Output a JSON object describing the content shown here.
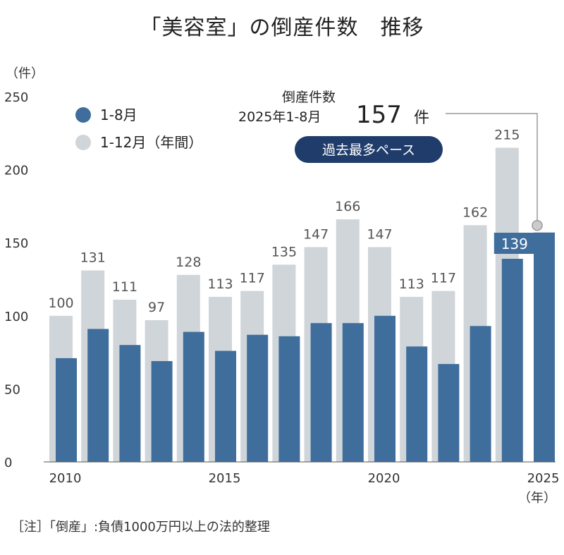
{
  "title": "「美容室」の倒産件数　推移",
  "footnote": "［注］「倒産」:負債1000万円以上の法的整理",
  "colors": {
    "aug": "#3f6e9c",
    "full": "#d0d5da",
    "badge": "#1f3c6b",
    "axis": "#555555",
    "leader": "#999999"
  },
  "annotation": {
    "line1": "倒産件数",
    "line2": "2025年1-8月",
    "value": "157",
    "unit": "件",
    "badge": "過去最多ペース"
  },
  "chart_data": {
    "type": "bar",
    "title": "「美容室」の倒産件数　推移",
    "ylabel": "（件）",
    "xlabel": "（年）",
    "ylim": [
      0,
      250
    ],
    "yticks": [
      0,
      50,
      100,
      150,
      200,
      250
    ],
    "xticks": [
      "2010",
      "2015",
      "2020",
      "2025"
    ],
    "legend": {
      "position": "top-left"
    },
    "categories": [
      "2010",
      "2011",
      "2012",
      "2013",
      "2014",
      "2015",
      "2016",
      "2017",
      "2018",
      "2019",
      "2020",
      "2021",
      "2022",
      "2023",
      "2024",
      "2025"
    ],
    "series": [
      {
        "name": "1-12月（年間）",
        "values": [
          100,
          131,
          111,
          97,
          128,
          113,
          117,
          135,
          147,
          166,
          147,
          113,
          117,
          162,
          215,
          null
        ]
      },
      {
        "name": "1-8月",
        "values": [
          71,
          91,
          80,
          69,
          89,
          76,
          87,
          86,
          95,
          95,
          100,
          79,
          67,
          93,
          139,
          157
        ]
      }
    ]
  }
}
